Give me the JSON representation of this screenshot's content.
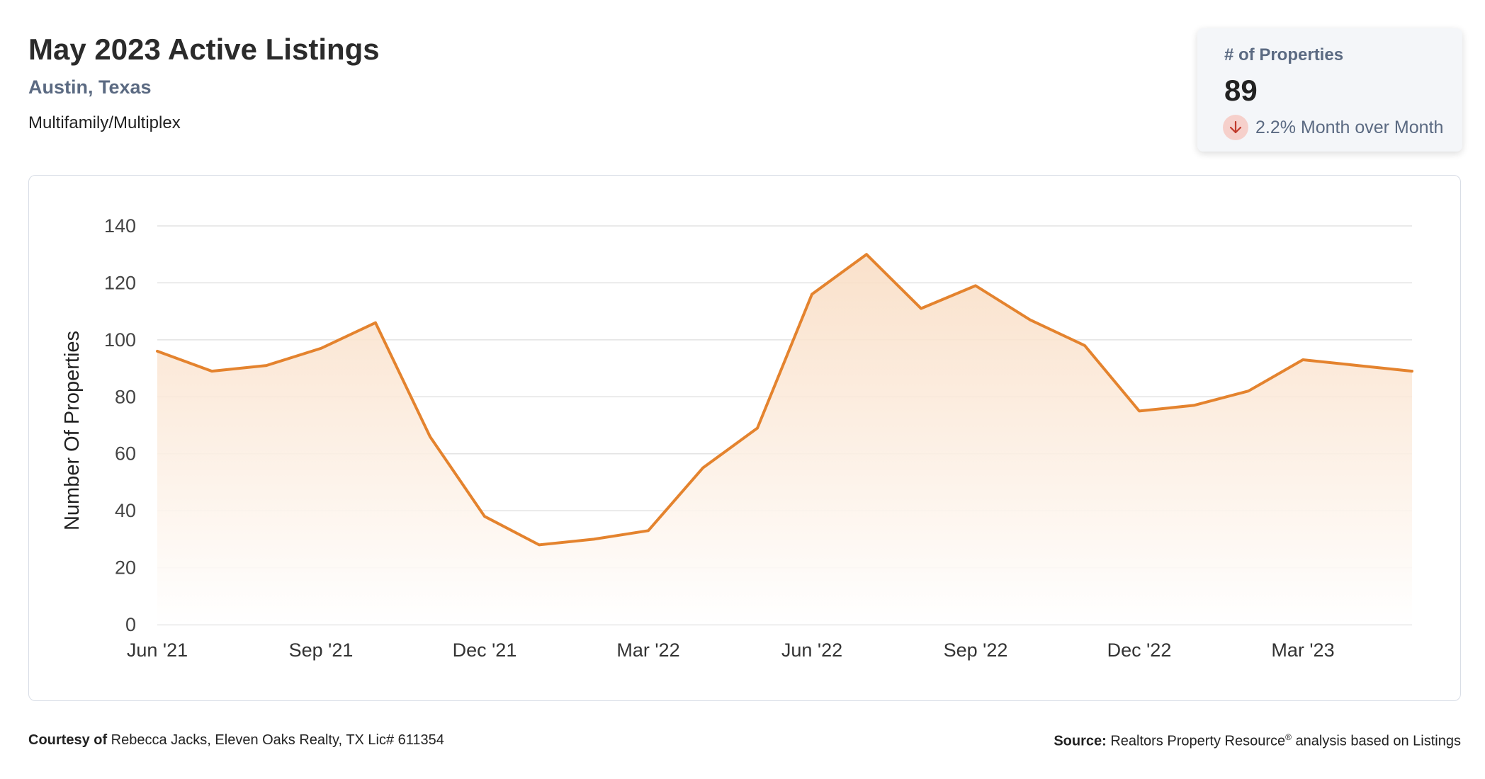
{
  "header": {
    "title": "May 2023 Active Listings",
    "location": "Austin, Texas",
    "property_type": "Multifamily/Multiplex"
  },
  "stat_card": {
    "label": "# of Properties",
    "value": "89",
    "change_text": "2.2% Month over Month",
    "change_direction": "down",
    "icon": "arrow-down-icon"
  },
  "colors": {
    "line": "#e4832e",
    "fill_top": "#f9dcc2",
    "grid": "#e3e3e3",
    "muted_text": "#5b6a82"
  },
  "chart_data": {
    "type": "area",
    "title": "",
    "xlabel": "",
    "ylabel": "Number Of Properties",
    "x": [
      "Jun '21",
      "Jul '21",
      "Aug '21",
      "Sep '21",
      "Oct '21",
      "Nov '21",
      "Dec '21",
      "Jan '22",
      "Feb '22",
      "Mar '22",
      "Apr '22",
      "May '22",
      "Jun '22",
      "Jul '22",
      "Aug '22",
      "Sep '22",
      "Oct '22",
      "Nov '22",
      "Dec '22",
      "Jan '23",
      "Feb '23",
      "Mar '23",
      "Apr '23",
      "May '23"
    ],
    "x_tick_labels": [
      "Jun '21",
      "Sep '21",
      "Dec '21",
      "Mar '22",
      "Jun '22",
      "Sep '22",
      "Dec '22",
      "Mar '23"
    ],
    "series": [
      {
        "values": [
          96,
          89,
          91,
          97,
          106,
          66,
          38,
          28,
          30,
          33,
          55,
          69,
          116,
          130,
          111,
          119,
          107,
          98,
          75,
          77,
          82,
          93,
          91,
          89
        ]
      }
    ],
    "ylim": [
      0,
      140
    ],
    "y_ticks": [
      0,
      20,
      40,
      60,
      80,
      100,
      120,
      140
    ],
    "grid": true,
    "legend": "none"
  },
  "footer": {
    "courtesy_label": "Courtesy of",
    "courtesy_text": " Rebecca Jacks, Eleven Oaks Realty, TX Lic# 611354",
    "source_label": "Source:",
    "source_text_1": " Realtors Property Resource",
    "source_reg": "®",
    "source_text_2": " analysis based on Listings"
  }
}
